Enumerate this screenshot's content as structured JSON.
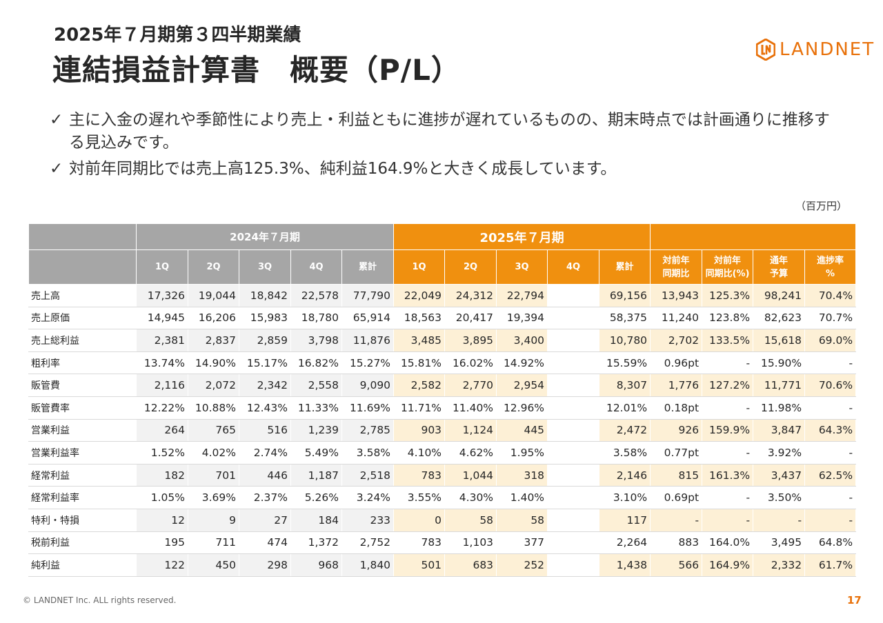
{
  "header": {
    "subtitle": "2025年７月期第３四半期業績",
    "title": "連結損益計算書　概要（P/L）"
  },
  "logo": {
    "text": "LANDNET",
    "icon": "landnet-logo-mark",
    "color": "#e8710a"
  },
  "bullets": [
    "主に入金の遅れや季節性により売上・利益ともに進捗が遅れているものの、期末時点では計画通りに推移する見込みです。",
    "対前年同期比では売上高125.3%、純利益164.9%と大きく成長しています。"
  ],
  "bullet_icon": "check-icon",
  "unit": "（百万円）",
  "table": {
    "period_prev": "2024年７月期",
    "period_curr": "2025年７月期",
    "columns": [
      "1Q",
      "2Q",
      "3Q",
      "4Q",
      "累計",
      "1Q",
      "2Q",
      "3Q",
      "4Q",
      "累計",
      "対前年 同期比",
      "対前年 同期比(%)",
      "通年 予算",
      "進捗率 %"
    ],
    "rows": [
      {
        "label": "売上高",
        "cells": [
          "17,326",
          "19,044",
          "18,842",
          "22,578",
          "77,790",
          "22,049",
          "24,312",
          "22,794",
          "",
          "69,156",
          "13,943",
          "125.3%",
          "98,241",
          "70.4%"
        ]
      },
      {
        "label": "売上原価",
        "cells": [
          "14,945",
          "16,206",
          "15,983",
          "18,780",
          "65,914",
          "18,563",
          "20,417",
          "19,394",
          "",
          "58,375",
          "11,240",
          "123.8%",
          "82,623",
          "70.7%"
        ]
      },
      {
        "label": "売上総利益",
        "cells": [
          "2,381",
          "2,837",
          "2,859",
          "3,798",
          "11,876",
          "3,485",
          "3,895",
          "3,400",
          "",
          "10,780",
          "2,702",
          "133.5%",
          "15,618",
          "69.0%"
        ]
      },
      {
        "label": "粗利率",
        "cells": [
          "13.74%",
          "14.90%",
          "15.17%",
          "16.82%",
          "15.27%",
          "15.81%",
          "16.02%",
          "14.92%",
          "",
          "15.59%",
          "0.96pt",
          "-",
          "15.90%",
          "-"
        ]
      },
      {
        "label": "販管費",
        "cells": [
          "2,116",
          "2,072",
          "2,342",
          "2,558",
          "9,090",
          "2,582",
          "2,770",
          "2,954",
          "",
          "8,307",
          "1,776",
          "127.2%",
          "11,771",
          "70.6%"
        ]
      },
      {
        "label": "販管費率",
        "cells": [
          "12.22%",
          "10.88%",
          "12.43%",
          "11.33%",
          "11.69%",
          "11.71%",
          "11.40%",
          "12.96%",
          "",
          "12.01%",
          "0.18pt",
          "-",
          "11.98%",
          "-"
        ]
      },
      {
        "label": "営業利益",
        "cells": [
          "264",
          "765",
          "516",
          "1,239",
          "2,785",
          "903",
          "1,124",
          "445",
          "",
          "2,472",
          "926",
          "159.9%",
          "3,847",
          "64.3%"
        ]
      },
      {
        "label": "営業利益率",
        "cells": [
          "1.52%",
          "4.02%",
          "2.74%",
          "5.49%",
          "3.58%",
          "4.10%",
          "4.62%",
          "1.95%",
          "",
          "3.58%",
          "0.77pt",
          "-",
          "3.92%",
          "-"
        ]
      },
      {
        "label": "経常利益",
        "cells": [
          "182",
          "701",
          "446",
          "1,187",
          "2,518",
          "783",
          "1,044",
          "318",
          "",
          "2,146",
          "815",
          "161.3%",
          "3,437",
          "62.5%"
        ]
      },
      {
        "label": "経常利益率",
        "cells": [
          "1.05%",
          "3.69%",
          "2.37%",
          "5.26%",
          "3.24%",
          "3.55%",
          "4.30%",
          "1.40%",
          "",
          "3.10%",
          "0.69pt",
          "-",
          "3.50%",
          "-"
        ]
      },
      {
        "label": "特利・特損",
        "cells": [
          "12",
          "9",
          "27",
          "184",
          "233",
          "0",
          "58",
          "58",
          "",
          "117",
          "-",
          "-",
          "-",
          "-"
        ]
      },
      {
        "label": "税前利益",
        "cells": [
          "195",
          "711",
          "474",
          "1,372",
          "2,752",
          "783",
          "1,103",
          "377",
          "",
          "2,264",
          "883",
          "164.0%",
          "3,495",
          "64.8%"
        ]
      },
      {
        "label": "純利益",
        "cells": [
          "122",
          "450",
          "298",
          "968",
          "1,840",
          "501",
          "683",
          "252",
          "",
          "1,438",
          "566",
          "164.9%",
          "2,332",
          "61.7%"
        ]
      }
    ]
  },
  "footer": {
    "copyright": "© LANDNET Inc. ALL rights reserved.",
    "page": "17"
  },
  "colors": {
    "accent": "#f0900f",
    "gray_header": "#a6a6a6",
    "orange_tint": "#fdf0d6",
    "gray_tint": "#f2f2f2"
  }
}
